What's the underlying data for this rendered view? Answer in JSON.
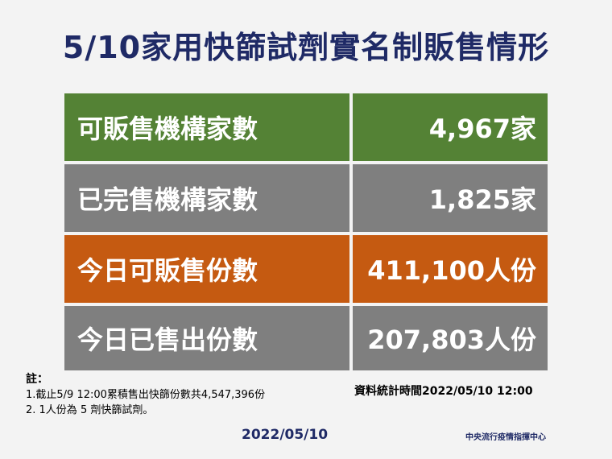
{
  "header": {
    "title": "5/10家用快篩試劑實名制販售情形"
  },
  "table": {
    "rows": [
      [
        "可販售機構家數",
        "4,967家"
      ],
      [
        "已完售機構家數",
        "1,825家"
      ],
      [
        "今日可販售份數",
        "411,100人份"
      ],
      [
        "今日已售出份數",
        "207,803人份"
      ]
    ],
    "colors": [
      "#548235",
      "#7f7f7f",
      "#c55a11",
      "#7f7f7f"
    ]
  },
  "notes": {
    "heading": "註：",
    "items": [
      "1.截止5/9 12:00累積售出快篩份數共4,547,396份",
      "2. 1人份為 5 劑快篩試劑。"
    ]
  },
  "stat_time": "資料統計時間2022/05/10  12:00",
  "date": "2022/05/10",
  "organization": "中央流行疫情指揮中心"
}
